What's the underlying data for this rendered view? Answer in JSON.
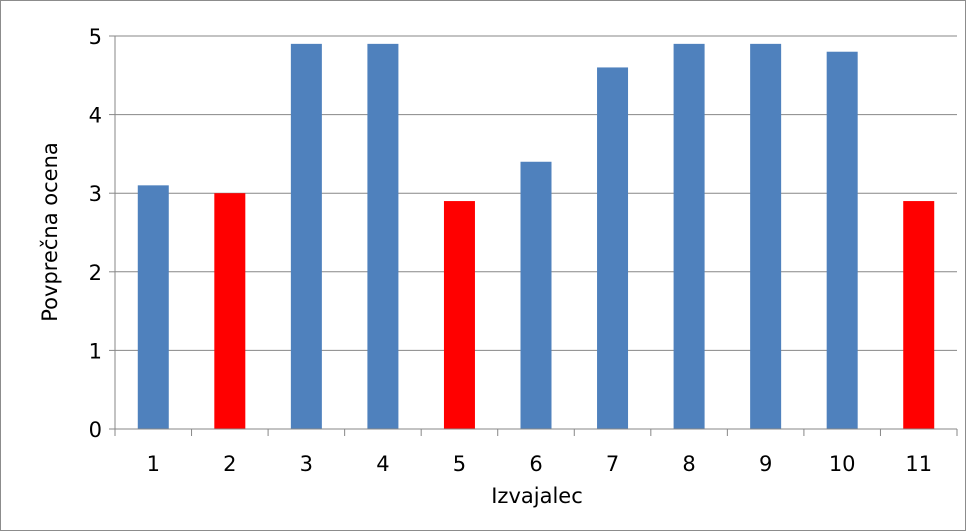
{
  "chart_data": {
    "type": "bar",
    "xlabel": "Izvajalec",
    "ylabel": "Povprečna ocena",
    "ylim": [
      0,
      5
    ],
    "yticks": [
      "0",
      "1",
      "2",
      "3",
      "4",
      "5"
    ],
    "categories": [
      "1",
      "2",
      "3",
      "4",
      "5",
      "6",
      "7",
      "8",
      "9",
      "10",
      "11"
    ],
    "values": [
      3.1,
      3.0,
      4.9,
      4.9,
      2.9,
      3.4,
      4.6,
      4.9,
      4.9,
      4.8,
      2.9
    ],
    "bar_colors": [
      "#4f81bd",
      "#ff0000",
      "#4f81bd",
      "#4f81bd",
      "#ff0000",
      "#4f81bd",
      "#4f81bd",
      "#4f81bd",
      "#4f81bd",
      "#4f81bd",
      "#ff0000"
    ],
    "grid": true
  },
  "colors": {
    "gridline": "#878787",
    "axis": "#878787"
  }
}
